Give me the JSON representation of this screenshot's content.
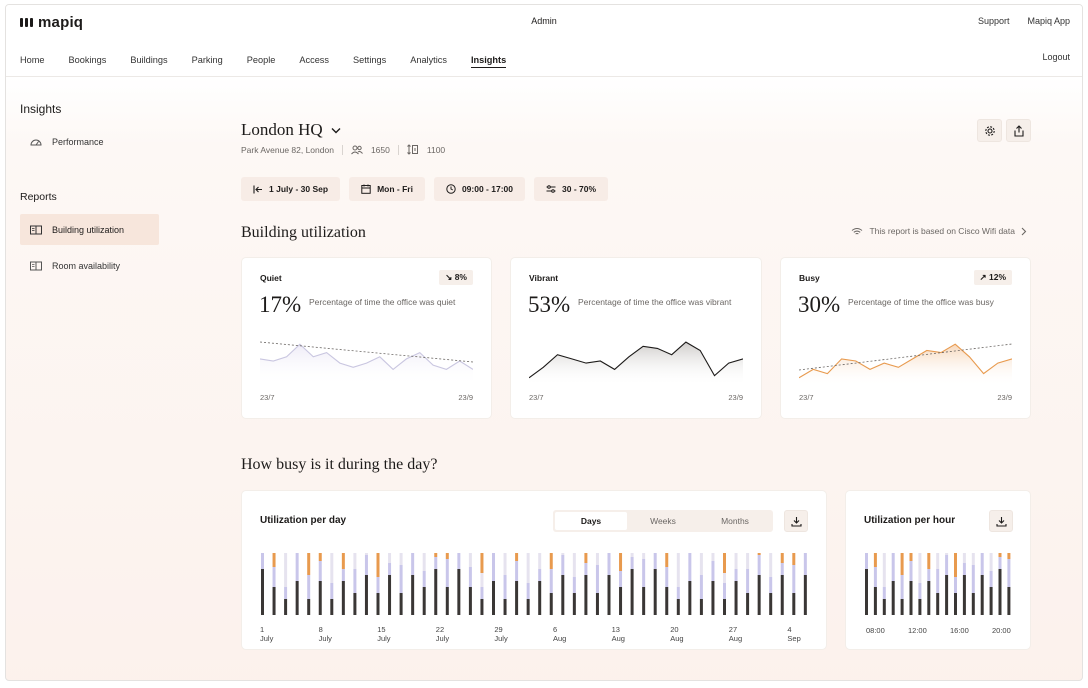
{
  "app": {
    "logo": "mapiq",
    "center_title": "Admin",
    "top_links": [
      "Support",
      "Mapiq App"
    ],
    "logout": "Logout"
  },
  "nav": {
    "items": [
      "Home",
      "Bookings",
      "Buildings",
      "Parking",
      "People",
      "Access",
      "Settings",
      "Analytics",
      "Insights"
    ],
    "active": "Insights"
  },
  "sidebar": {
    "insights_title": "Insights",
    "insights_items": [
      {
        "label": "Performance",
        "icon": "gauge-icon"
      }
    ],
    "reports_title": "Reports",
    "reports_items": [
      {
        "label": "Building utilization",
        "icon": "book-icon",
        "active": true
      },
      {
        "label": "Room availability",
        "icon": "book-icon",
        "active": false
      }
    ]
  },
  "location": {
    "name": "London HQ",
    "address": "Park Avenue 82, London",
    "people": "1650",
    "capacity": "1100"
  },
  "filters": [
    {
      "label": "1 July - 30 Sep",
      "icon": "date-range-icon"
    },
    {
      "label": "Mon - Fri",
      "icon": "calendar-icon"
    },
    {
      "label": "09:00 - 17:00",
      "icon": "clock-icon"
    },
    {
      "label": "30 - 70%",
      "icon": "sliders-icon"
    }
  ],
  "utilization": {
    "title": "Building utilization",
    "note": "This report is based on Cisco Wifi data",
    "colors": {
      "quiet": "#c9c6ea",
      "vibrant": "#3a3735",
      "busy": "#e89a4e"
    },
    "cards": [
      {
        "label": "Quiet",
        "badge": "↘ 8%",
        "value": "17%",
        "desc": "Percentage of time the office was quiet",
        "start": "23/7",
        "end": "23/9",
        "series": [
          0.55,
          0.5,
          0.6,
          0.9,
          0.6,
          0.7,
          0.45,
          0.35,
          0.45,
          0.6,
          0.3,
          0.55,
          0.7,
          0.4,
          0.3,
          0.5,
          0.3
        ]
      },
      {
        "label": "Vibrant",
        "badge": "",
        "value": "53%",
        "desc": "Percentage of time the office was vibrant",
        "start": "23/7",
        "end": "23/9",
        "series": [
          0.1,
          0.35,
          0.65,
          0.55,
          0.45,
          0.5,
          0.3,
          0.6,
          0.85,
          0.8,
          0.65,
          0.95,
          0.75,
          0.15,
          0.45,
          0.55
        ]
      },
      {
        "label": "Busy",
        "badge": "↗ 12%",
        "value": "30%",
        "desc": "Percentage of time the office was busy",
        "start": "23/7",
        "end": "23/9",
        "series": [
          0.1,
          0.3,
          0.2,
          0.55,
          0.5,
          0.3,
          0.45,
          0.35,
          0.55,
          0.75,
          0.7,
          0.9,
          0.6,
          0.2,
          0.45,
          0.55
        ]
      }
    ]
  },
  "busy_section": {
    "title": "How busy is it during the day?",
    "per_day": {
      "title": "Utilization per day",
      "tabs": [
        "Days",
        "Weeks",
        "Months"
      ],
      "active_tab": "Days",
      "x_labels": [
        "1 July",
        "8 July",
        "15 July",
        "22 July",
        "29 July",
        "6 Aug",
        "13 Aug",
        "20 Aug",
        "27 Aug",
        "4 Sep"
      ]
    },
    "per_hour": {
      "title": "Utilization per hour",
      "x_labels": [
        "08:00",
        "12:00",
        "16:00",
        "20:00"
      ]
    }
  }
}
